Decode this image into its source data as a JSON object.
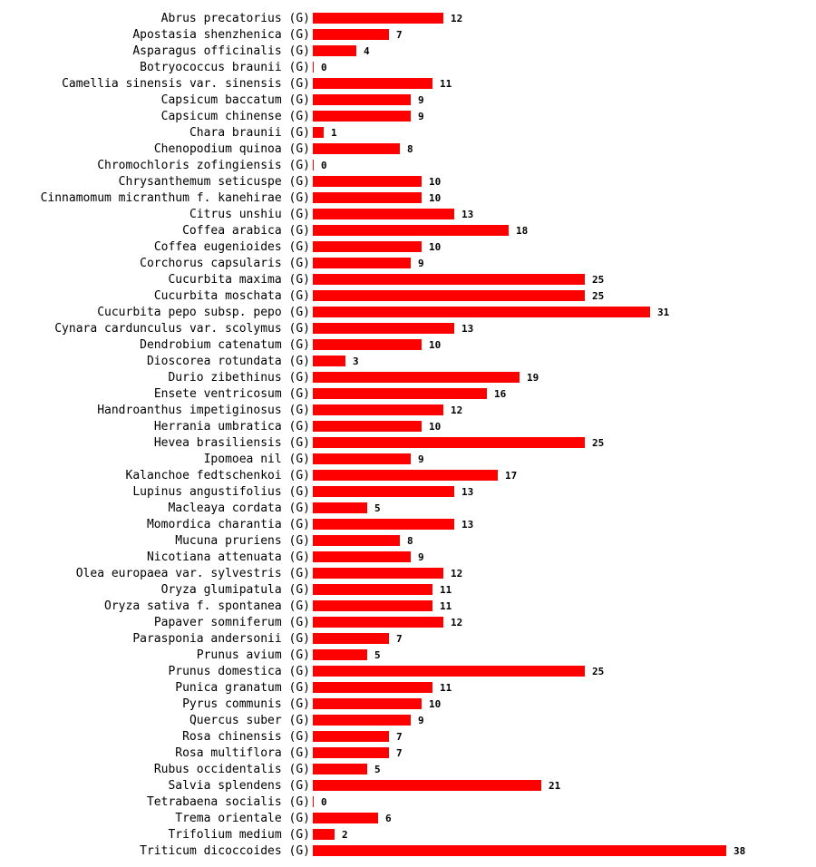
{
  "chart_data": {
    "type": "bar",
    "orientation": "horizontal",
    "bar_color": "#ff0000",
    "title": "",
    "xlabel": "",
    "ylabel": "",
    "xlim": [
      0,
      38
    ],
    "grid": false,
    "categories": [
      "Abrus precatorius (G)",
      "Apostasia shenzhenica (G)",
      "Asparagus officinalis (G)",
      "Botryococcus braunii (G)",
      "Camellia sinensis var. sinensis (G)",
      "Capsicum baccatum (G)",
      "Capsicum chinense (G)",
      "Chara braunii (G)",
      "Chenopodium quinoa (G)",
      "Chromochloris zofingiensis (G)",
      "Chrysanthemum seticuspe (G)",
      "Cinnamomum micranthum f. kanehirae (G)",
      "Citrus unshiu (G)",
      "Coffea arabica (G)",
      "Coffea eugenioides (G)",
      "Corchorus capsularis (G)",
      "Cucurbita maxima (G)",
      "Cucurbita moschata (G)",
      "Cucurbita pepo subsp. pepo (G)",
      "Cynara cardunculus var. scolymus (G)",
      "Dendrobium catenatum (G)",
      "Dioscorea rotundata (G)",
      "Durio zibethinus (G)",
      "Ensete ventricosum (G)",
      "Handroanthus impetiginosus (G)",
      "Herrania umbratica (G)",
      "Hevea brasiliensis (G)",
      "Ipomoea nil (G)",
      "Kalanchoe fedtschenkoi (G)",
      "Lupinus angustifolius (G)",
      "Macleaya cordata (G)",
      "Momordica charantia (G)",
      "Mucuna pruriens (G)",
      "Nicotiana attenuata (G)",
      "Olea europaea var. sylvestris (G)",
      "Oryza glumipatula (G)",
      "Oryza sativa f. spontanea (G)",
      "Papaver somniferum (G)",
      "Parasponia andersonii (G)",
      "Prunus avium (G)",
      "Prunus domestica (G)",
      "Punica granatum (G)",
      "Pyrus communis (G)",
      "Quercus suber (G)",
      "Rosa chinensis (G)",
      "Rosa multiflora (G)",
      "Rubus occidentalis (G)",
      "Salvia splendens (G)",
      "Tetrabaena socialis (G)",
      "Trema orientale (G)",
      "Trifolium medium (G)",
      "Triticum dicoccoides (G)"
    ],
    "values": [
      12,
      7,
      4,
      0,
      11,
      9,
      9,
      1,
      8,
      0,
      10,
      10,
      13,
      18,
      10,
      9,
      25,
      25,
      31,
      13,
      10,
      3,
      19,
      16,
      12,
      10,
      25,
      9,
      17,
      13,
      5,
      13,
      8,
      9,
      12,
      11,
      11,
      12,
      7,
      5,
      25,
      11,
      10,
      9,
      7,
      7,
      5,
      21,
      0,
      6,
      2,
      38
    ]
  }
}
